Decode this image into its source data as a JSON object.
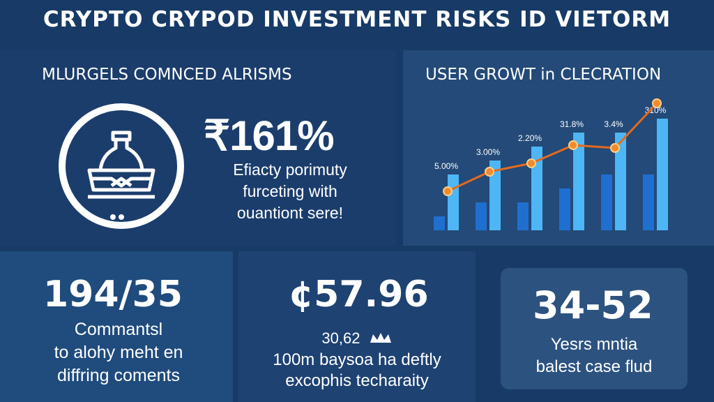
{
  "title": "CRYPTO CRYPOD INVESTMENT RISKS ID VIETORM",
  "left_panel": {
    "heading": "MLURGELS COMNCED ALRISMS",
    "big_value": "₹161%",
    "desc_lines": [
      "Efiacty porimuty",
      "furceting with",
      "ouantiont sere!"
    ],
    "icon": "ship-icon"
  },
  "right_panel": {
    "heading": "USER GROWT in CLECRATION"
  },
  "chart_data": {
    "type": "bar",
    "title": "USER GROWT in CLECRATION",
    "categories": [
      "",
      "",
      "",
      "",
      "",
      ""
    ],
    "series": [
      {
        "values": [
          1,
          2,
          2,
          3,
          4,
          4
        ],
        "color": "#1f6fd0"
      },
      {
        "values": [
          4,
          5,
          6,
          7,
          7,
          8
        ],
        "color": "#4fb6f5"
      }
    ],
    "line": [
      2.8,
      4.2,
      4.8,
      6.1,
      5.9,
      9.1
    ],
    "data_labels": [
      "5.00%",
      "3.00%",
      "2.20%",
      "31.8%",
      "3.4%",
      "310%"
    ],
    "line_color": "#e46a1e",
    "ylim": [
      0,
      10
    ]
  },
  "tile1": {
    "value": "194/35",
    "lines": [
      "Commantsl",
      "to alohy meht en",
      "diffring coments"
    ]
  },
  "tile2": {
    "value": "¢57.96",
    "sub_value": "30,62",
    "lines": [
      "100m baysoa ha deftly",
      "excophis techaraity"
    ]
  },
  "tile3": {
    "value": "34-52",
    "lines": [
      "Yesrs mntia",
      "balest case flud"
    ]
  }
}
